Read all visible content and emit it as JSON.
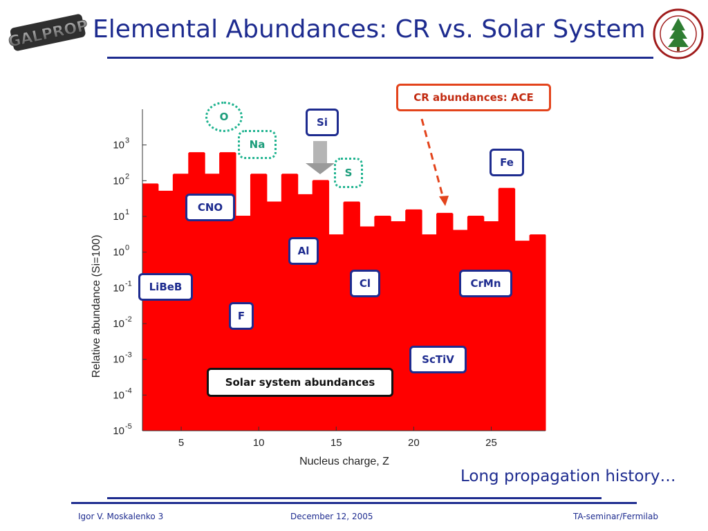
{
  "slide": {
    "title": "Elemental Abundances: CR vs. Solar System",
    "logo_left_text": "GALPROP",
    "tagline": "Long propagation history…",
    "footer": {
      "author": "Igor V. Moskalenko  3",
      "date": "December 12, 2005",
      "venue": "TA-seminar/Fermilab"
    }
  },
  "annotations": {
    "cr": "CR abundances: ACE",
    "o": "O",
    "na": "Na",
    "si": "Si",
    "s": "S",
    "fe": "Fe",
    "cno": "CNO",
    "al": "Al",
    "cl": "Cl",
    "crmn": "CrMn",
    "libeb": "LiBeB",
    "f": "F",
    "sctiv": "ScTiV",
    "solar": "Solar system abundances"
  },
  "colors": {
    "cr": "#ff0000",
    "solar": "#ffff00",
    "title": "#1d2b8f",
    "arrow": "#e3431b",
    "dotted": "#1fb38f"
  },
  "chart_data": {
    "type": "bar",
    "xlabel": "Nucleus charge, Z",
    "ylabel": "Relative abundance (Si=100)",
    "yscale": "log",
    "xlim": [
      2.5,
      28.5
    ],
    "ylim": [
      1e-05,
      10000
    ],
    "x_ticks": [
      5,
      10,
      15,
      20,
      25
    ],
    "y_ticks": [
      {
        "exp": -5,
        "label": "10",
        "sup": "-5"
      },
      {
        "exp": -4,
        "label": "10",
        "sup": "-4"
      },
      {
        "exp": -3,
        "label": "10",
        "sup": "-3"
      },
      {
        "exp": -2,
        "label": "10",
        "sup": "-2"
      },
      {
        "exp": -1,
        "label": "10",
        "sup": "-1"
      },
      {
        "exp": 0,
        "label": "10",
        "sup": "0"
      },
      {
        "exp": 1,
        "label": "10",
        "sup": "1"
      },
      {
        "exp": 2,
        "label": "10",
        "sup": "2"
      },
      {
        "exp": 3,
        "label": "10",
        "sup": "3"
      }
    ],
    "grid": false,
    "categories": [
      3,
      4,
      5,
      6,
      7,
      8,
      9,
      10,
      11,
      12,
      13,
      14,
      15,
      16,
      17,
      18,
      19,
      20,
      21,
      22,
      23,
      24,
      25,
      26,
      27,
      28
    ],
    "series": [
      {
        "name": "CR abundances: ACE",
        "values": [
          80,
          50,
          150,
          600,
          150,
          600,
          10,
          150,
          25,
          150,
          40,
          100,
          3,
          25,
          5,
          10,
          7,
          15,
          3,
          12,
          4,
          10,
          7,
          60,
          2,
          3
        ]
      },
      {
        "name": "Solar system abundances",
        "values": 3e-05
      }
    ]
  }
}
